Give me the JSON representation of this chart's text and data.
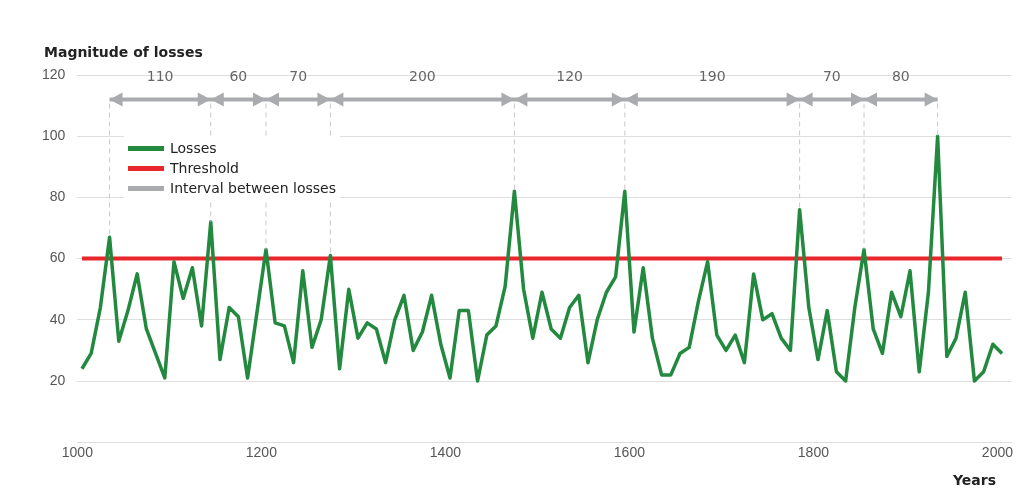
{
  "chart_data": {
    "type": "line",
    "xlabel": "Years",
    "ylabel": "Magnitude of losses",
    "xlim": [
      1000,
      2015
    ],
    "xticks": [
      1000,
      1200,
      1400,
      1600,
      1800,
      2000
    ],
    "ylim": [
      0,
      120
    ],
    "yticks": [
      20,
      40,
      60,
      80,
      100,
      120
    ],
    "grid": "y",
    "legend": "top left",
    "marker": "none",
    "line_style": "solid",
    "series": [
      {
        "name": "Losses",
        "color": "#22893f",
        "x": [
          1005,
          1015,
          1025,
          1035,
          1045,
          1055,
          1065,
          1075,
          1085,
          1095,
          1105,
          1115,
          1125,
          1135,
          1145,
          1155,
          1165,
          1175,
          1185,
          1195,
          1205,
          1215,
          1225,
          1235,
          1245,
          1255,
          1265,
          1275,
          1285,
          1295,
          1305,
          1315,
          1325,
          1335,
          1345,
          1355,
          1365,
          1375,
          1385,
          1395,
          1405,
          1415,
          1425,
          1435,
          1445,
          1455,
          1465,
          1475,
          1485,
          1495,
          1505,
          1515,
          1525,
          1535,
          1545,
          1555,
          1565,
          1575,
          1585,
          1595,
          1605,
          1615,
          1625,
          1635,
          1645,
          1655,
          1665,
          1675,
          1685,
          1695,
          1705,
          1715,
          1725,
          1735,
          1745,
          1755,
          1765,
          1775,
          1785,
          1795,
          1805,
          1815,
          1825,
          1835,
          1845,
          1855,
          1865,
          1875,
          1885,
          1895,
          1905,
          1915,
          1925,
          1935,
          1945,
          1955,
          1965,
          1975,
          1985,
          1995,
          2005
        ],
        "values": [
          24,
          29,
          44,
          67,
          33,
          43,
          55,
          37,
          29,
          21,
          59,
          47,
          57,
          38,
          72,
          27,
          44,
          41,
          21,
          42,
          63,
          39,
          38,
          26,
          56,
          31,
          40,
          61,
          24,
          50,
          34,
          39,
          37,
          26,
          40,
          48,
          30,
          36,
          48,
          32,
          21,
          43,
          43,
          20,
          35,
          38,
          51,
          82,
          50,
          34,
          49,
          37,
          34,
          44,
          48,
          26,
          40,
          49,
          54,
          82,
          36,
          57,
          34,
          22,
          22,
          29,
          31,
          46,
          59,
          35,
          30,
          35,
          26,
          55,
          40,
          42,
          34,
          30,
          76,
          44,
          27,
          43,
          23,
          20,
          44,
          63,
          37,
          29,
          49,
          41,
          56,
          23,
          49,
          100,
          28,
          34,
          49,
          20,
          23,
          32,
          29
        ]
      },
      {
        "name": "Threshold",
        "color": "#e8262b",
        "x": [
          1005,
          2005
        ],
        "values": [
          60,
          60
        ]
      },
      {
        "name": "Interval between losses",
        "color": "#a9abae",
        "x": [
          1035,
          1145,
          1205,
          1275,
          1475,
          1595,
          1785,
          1855,
          1935
        ],
        "values": [
          112,
          112,
          112,
          112,
          112,
          112,
          112,
          112,
          112
        ]
      }
    ],
    "annotations": [
      {
        "text": "110",
        "x": 1090,
        "y": 112
      },
      {
        "text": "60",
        "x": 1175,
        "y": 112
      },
      {
        "text": "70",
        "x": 1240,
        "y": 112
      },
      {
        "text": "200",
        "x": 1375,
        "y": 112
      },
      {
        "text": "120",
        "x": 1535,
        "y": 112
      },
      {
        "text": "190",
        "x": 1690,
        "y": 112
      },
      {
        "text": "70",
        "x": 1820,
        "y": 112
      },
      {
        "text": "80",
        "x": 1895,
        "y": 112
      }
    ]
  }
}
